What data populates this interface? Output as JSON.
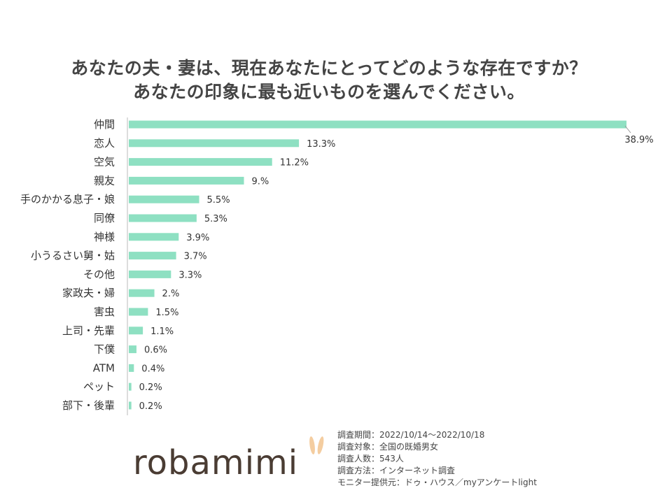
{
  "title_line1": "あなたの夫・妻は、現在あなたにとってどのような存在ですか？",
  "title_line2": "あなたの印象に最も近いものを選んでください。",
  "chart_data": {
    "type": "bar",
    "orientation": "horizontal",
    "categories": [
      "仲間",
      "恋人",
      "空気",
      "親友",
      "手のかかる息子・娘",
      "同僚",
      "神様",
      "小うるさい舅・姑",
      "その他",
      "家政夫・婦",
      "害虫",
      "上司・先輩",
      "下僕",
      "ATM",
      "ペット",
      "部下・後輩"
    ],
    "values": [
      38.9,
      13.3,
      11.2,
      9.0,
      5.5,
      5.3,
      3.9,
      3.7,
      3.3,
      2.0,
      1.5,
      1.1,
      0.6,
      0.4,
      0.2,
      0.2
    ],
    "value_labels": [
      "38.9%",
      "13.3%",
      "11.2%",
      "9.%",
      "5.5%",
      "5.3%",
      "3.9%",
      "3.7%",
      "3.3%",
      "2.%",
      "1.5%",
      "1.1%",
      "0.6%",
      "0.4%",
      "0.2%",
      "0.2%"
    ],
    "title": "",
    "xlabel": "",
    "ylabel": "",
    "xlim": [
      0,
      38.9
    ],
    "grid": false,
    "bar_color": "#8ee0c2"
  },
  "logo_text": "robamimi",
  "logo_ear_color": "#f4cda0",
  "notes": [
    "調査期間：2022/10/14～2022/10/18",
    "調査対象：全国の既婚男女",
    "調査人数：543人",
    "調査方法：インターネット調査",
    "モニター提供元：ドゥ・ハウス／myアンケートlight"
  ]
}
